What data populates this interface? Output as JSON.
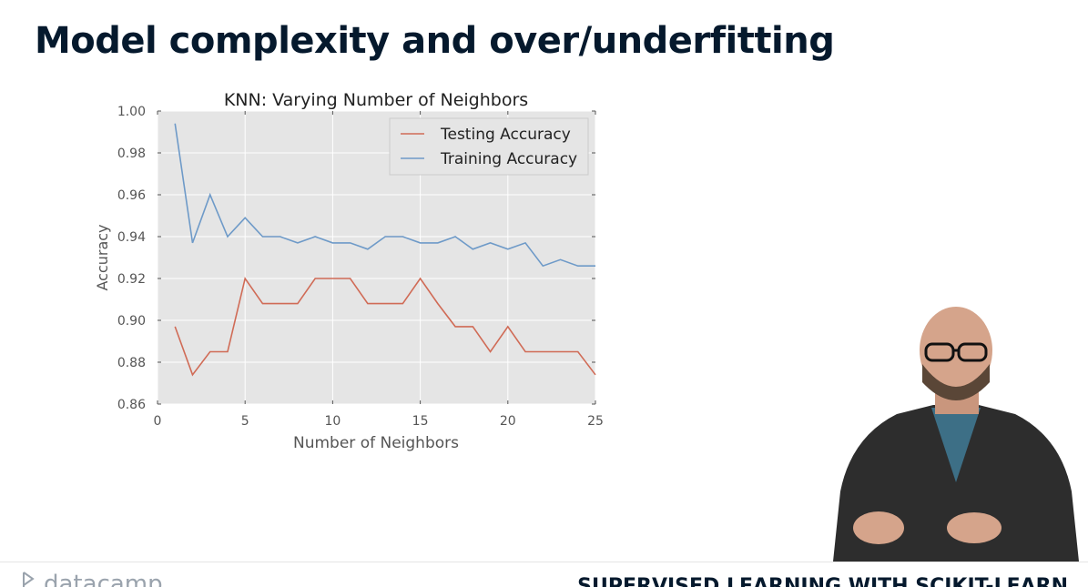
{
  "slide": {
    "title": "Model complexity and over/underfitting"
  },
  "footer": {
    "brand": "datacamp",
    "course": "SUPERVISED LEARNING WITH SCIKIT-LEARN"
  },
  "colors": {
    "testing": "#d06b56",
    "training": "#6e9ac8",
    "plot_bg": "#e5e5e5",
    "title": "#05192d"
  },
  "chart_data": {
    "type": "line",
    "title": "KNN: Varying Number of Neighbors",
    "xlabel": "Number of Neighbors",
    "ylabel": "Accuracy",
    "xlim": [
      0,
      25
    ],
    "ylim": [
      0.86,
      1.0
    ],
    "xticks": [
      0,
      5,
      10,
      15,
      20,
      25
    ],
    "yticks": [
      0.86,
      0.88,
      0.9,
      0.92,
      0.94,
      0.96,
      0.98,
      1.0
    ],
    "grid": true,
    "legend_position": "top-right",
    "x": [
      1,
      2,
      3,
      4,
      5,
      6,
      7,
      8,
      9,
      10,
      11,
      12,
      13,
      14,
      15,
      16,
      17,
      18,
      19,
      20,
      21,
      22,
      23,
      24,
      25
    ],
    "series": [
      {
        "name": "Testing Accuracy",
        "values": [
          0.897,
          0.874,
          0.885,
          0.885,
          0.92,
          0.908,
          0.908,
          0.908,
          0.92,
          0.92,
          0.92,
          0.908,
          0.908,
          0.908,
          0.92,
          0.908,
          0.897,
          0.897,
          0.885,
          0.897,
          0.885,
          0.885,
          0.885,
          0.885,
          0.874
        ]
      },
      {
        "name": "Training Accuracy",
        "values": [
          0.994,
          0.937,
          0.96,
          0.94,
          0.949,
          0.94,
          0.94,
          0.937,
          0.94,
          0.937,
          0.937,
          0.934,
          0.94,
          0.94,
          0.937,
          0.937,
          0.94,
          0.934,
          0.937,
          0.934,
          0.937,
          0.926,
          0.929,
          0.926,
          0.926
        ]
      }
    ]
  }
}
